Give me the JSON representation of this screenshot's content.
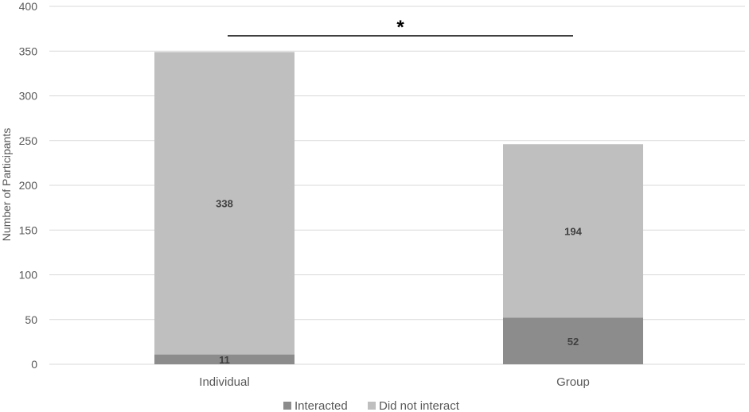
{
  "chart_data": {
    "type": "bar",
    "stacked": true,
    "categories": [
      "Individual",
      "Group"
    ],
    "series": [
      {
        "name": "Interacted",
        "values": [
          11,
          52
        ],
        "color": "#8c8c8c"
      },
      {
        "name": "Did not interact",
        "values": [
          338,
          194
        ],
        "color": "#bfbfbf"
      }
    ],
    "title": "",
    "xlabel": "",
    "ylabel": "Number of Participants",
    "ylim": [
      0,
      400
    ],
    "yticks": [
      0,
      50,
      100,
      150,
      200,
      250,
      300,
      350,
      400
    ],
    "grid": true,
    "legend_position": "bottom",
    "annotation": {
      "text": "*",
      "type": "significance-bracket",
      "between": [
        "Individual",
        "Group"
      ]
    },
    "gridline_color": "#d9d9d9",
    "axis_color": "#d9d9d9"
  }
}
